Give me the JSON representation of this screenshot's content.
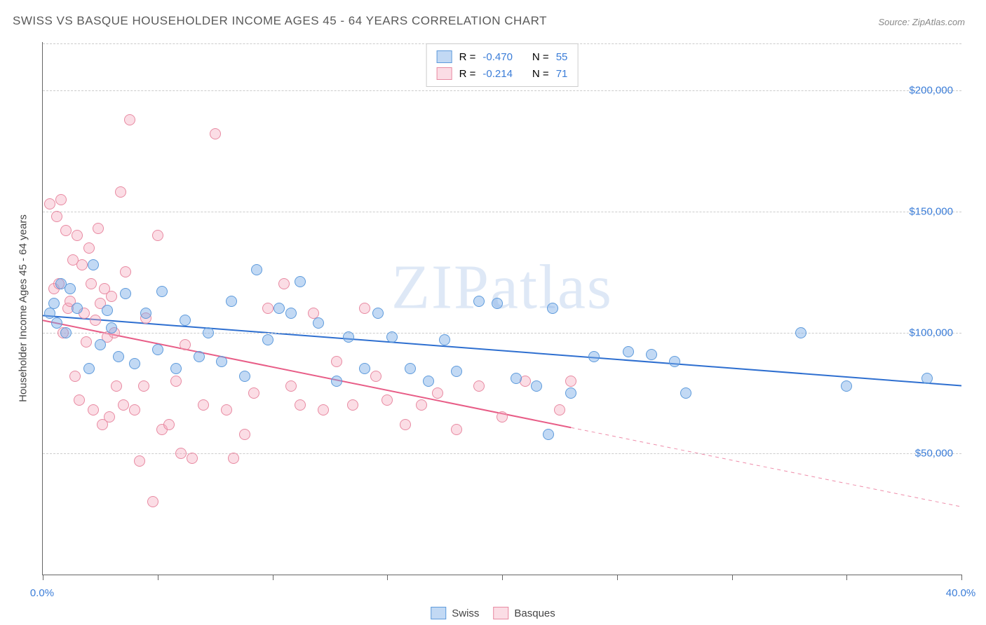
{
  "title": "SWISS VS BASQUE HOUSEHOLDER INCOME AGES 45 - 64 YEARS CORRELATION CHART",
  "source": "Source: ZipAtlas.com",
  "watermark": "ZIPatlas",
  "ylabel": "Householder Income Ages 45 - 64 years",
  "chart": {
    "type": "scatter",
    "xlim": [
      0,
      40
    ],
    "ylim": [
      0,
      220000
    ],
    "x_ticks": [
      0,
      5,
      10,
      15,
      20,
      25,
      30,
      35,
      40
    ],
    "x_tick_labels": {
      "0": "0.0%",
      "40": "40.0%"
    },
    "y_gridlines": [
      50000,
      100000,
      150000,
      200000
    ],
    "y_gridline_top_partial": 5000,
    "y_tick_labels": [
      "$50,000",
      "$100,000",
      "$150,000",
      "$200,000"
    ],
    "background_color": "#ffffff",
    "grid_color": "#cccccc",
    "axis_color": "#666666",
    "tick_label_color": "#3b7dd8",
    "axis_label_color": "#444444",
    "title_color": "#5a5a5a",
    "title_fontsize": 17,
    "label_fontsize": 15,
    "tick_fontsize": 15,
    "point_radius": 7,
    "point_opacity": 0.55
  },
  "series": [
    {
      "name": "Swiss",
      "color_fill": "rgba(120,170,230,0.45)",
      "color_stroke": "#5e9bdc",
      "line_color": "#2e6fd0",
      "line_width": 2,
      "regression": {
        "x1": 0,
        "y1": 107000,
        "x2": 40,
        "y2": 78000,
        "solid_until_x": 40
      },
      "R": "-0.470",
      "N": "55",
      "points": [
        [
          0.3,
          108000
        ],
        [
          0.5,
          112000
        ],
        [
          0.6,
          104000
        ],
        [
          0.8,
          120000
        ],
        [
          1.0,
          100000
        ],
        [
          1.2,
          118000
        ],
        [
          1.5,
          110000
        ],
        [
          2.0,
          85000
        ],
        [
          2.2,
          128000
        ],
        [
          2.5,
          95000
        ],
        [
          2.8,
          109000
        ],
        [
          3.0,
          102000
        ],
        [
          3.3,
          90000
        ],
        [
          3.6,
          116000
        ],
        [
          4.0,
          87000
        ],
        [
          4.5,
          108000
        ],
        [
          5.0,
          93000
        ],
        [
          5.2,
          117000
        ],
        [
          5.8,
          85000
        ],
        [
          6.2,
          105000
        ],
        [
          6.8,
          90000
        ],
        [
          7.2,
          100000
        ],
        [
          7.8,
          88000
        ],
        [
          8.2,
          113000
        ],
        [
          8.8,
          82000
        ],
        [
          9.3,
          126000
        ],
        [
          9.8,
          97000
        ],
        [
          10.3,
          110000
        ],
        [
          10.8,
          108000
        ],
        [
          11.2,
          121000
        ],
        [
          12.0,
          104000
        ],
        [
          12.8,
          80000
        ],
        [
          13.3,
          98000
        ],
        [
          14.0,
          85000
        ],
        [
          14.6,
          108000
        ],
        [
          15.2,
          98000
        ],
        [
          16.0,
          85000
        ],
        [
          16.8,
          80000
        ],
        [
          17.5,
          97000
        ],
        [
          18.0,
          84000
        ],
        [
          19.0,
          113000
        ],
        [
          19.8,
          112000
        ],
        [
          20.6,
          81000
        ],
        [
          21.5,
          78000
        ],
        [
          22.0,
          58000
        ],
        [
          22.2,
          110000
        ],
        [
          23.0,
          75000
        ],
        [
          24.0,
          90000
        ],
        [
          25.5,
          92000
        ],
        [
          26.5,
          91000
        ],
        [
          27.5,
          88000
        ],
        [
          28.0,
          75000
        ],
        [
          33.0,
          100000
        ],
        [
          35.0,
          78000
        ],
        [
          38.5,
          81000
        ]
      ]
    },
    {
      "name": "Basques",
      "color_fill": "rgba(245,170,190,0.40)",
      "color_stroke": "#e88aa2",
      "line_color": "#e85d87",
      "line_width": 2,
      "regression": {
        "x1": 0,
        "y1": 105000,
        "x2": 40,
        "y2": 28000,
        "solid_until_x": 23
      },
      "R": "-0.214",
      "N": "71",
      "points": [
        [
          0.3,
          153000
        ],
        [
          0.5,
          118000
        ],
        [
          0.6,
          148000
        ],
        [
          0.7,
          120000
        ],
        [
          0.8,
          155000
        ],
        [
          0.9,
          100000
        ],
        [
          1.0,
          142000
        ],
        [
          1.1,
          110000
        ],
        [
          1.2,
          113000
        ],
        [
          1.3,
          130000
        ],
        [
          1.4,
          82000
        ],
        [
          1.5,
          140000
        ],
        [
          1.6,
          72000
        ],
        [
          1.7,
          128000
        ],
        [
          1.8,
          108000
        ],
        [
          1.9,
          96000
        ],
        [
          2.0,
          135000
        ],
        [
          2.1,
          120000
        ],
        [
          2.2,
          68000
        ],
        [
          2.3,
          105000
        ],
        [
          2.4,
          143000
        ],
        [
          2.5,
          112000
        ],
        [
          2.6,
          62000
        ],
        [
          2.7,
          118000
        ],
        [
          2.8,
          98000
        ],
        [
          2.9,
          65000
        ],
        [
          3.0,
          115000
        ],
        [
          3.1,
          100000
        ],
        [
          3.2,
          78000
        ],
        [
          3.4,
          158000
        ],
        [
          3.5,
          70000
        ],
        [
          3.6,
          125000
        ],
        [
          3.8,
          188000
        ],
        [
          4.0,
          68000
        ],
        [
          4.2,
          47000
        ],
        [
          4.4,
          78000
        ],
        [
          4.5,
          106000
        ],
        [
          4.8,
          30000
        ],
        [
          5.0,
          140000
        ],
        [
          5.2,
          60000
        ],
        [
          5.5,
          62000
        ],
        [
          5.8,
          80000
        ],
        [
          6.0,
          50000
        ],
        [
          6.2,
          95000
        ],
        [
          6.5,
          48000
        ],
        [
          7.0,
          70000
        ],
        [
          7.5,
          182000
        ],
        [
          8.0,
          68000
        ],
        [
          8.3,
          48000
        ],
        [
          8.8,
          58000
        ],
        [
          9.2,
          75000
        ],
        [
          9.8,
          110000
        ],
        [
          10.5,
          120000
        ],
        [
          10.8,
          78000
        ],
        [
          11.2,
          70000
        ],
        [
          11.8,
          108000
        ],
        [
          12.2,
          68000
        ],
        [
          12.8,
          88000
        ],
        [
          13.5,
          70000
        ],
        [
          14.0,
          110000
        ],
        [
          14.5,
          82000
        ],
        [
          15.0,
          72000
        ],
        [
          15.8,
          62000
        ],
        [
          16.5,
          70000
        ],
        [
          17.2,
          75000
        ],
        [
          18.0,
          60000
        ],
        [
          19.0,
          78000
        ],
        [
          20.0,
          65000
        ],
        [
          21.0,
          80000
        ],
        [
          22.5,
          68000
        ],
        [
          23.0,
          80000
        ]
      ]
    }
  ],
  "legend_top": {
    "R_label": "R =",
    "N_label": "N ="
  },
  "legend_bottom": {
    "items": [
      "Swiss",
      "Basques"
    ]
  }
}
